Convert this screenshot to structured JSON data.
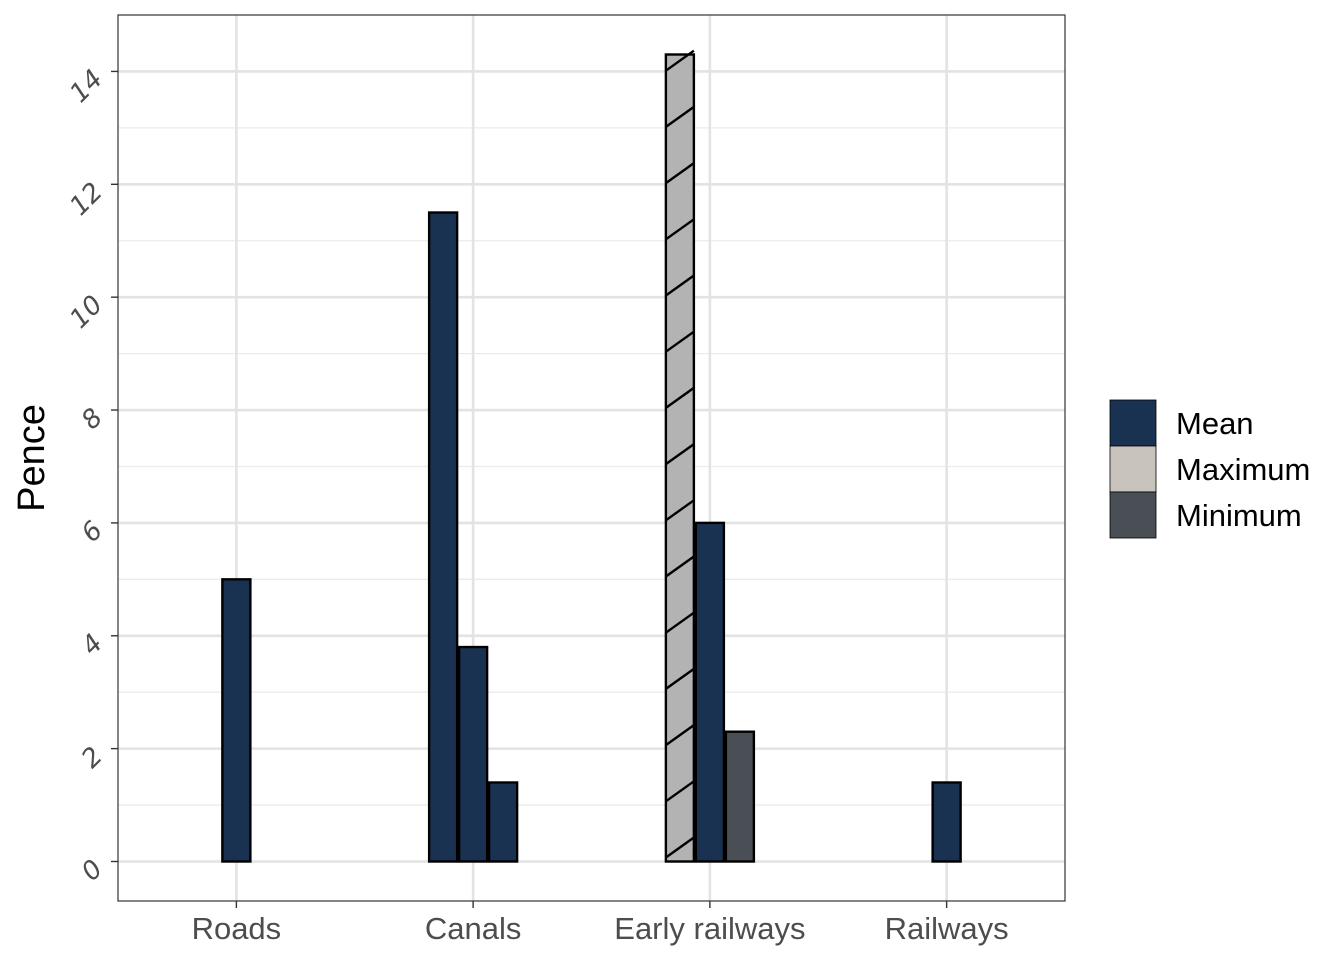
{
  "chart_data": {
    "type": "bar",
    "title": "",
    "xlabel": "",
    "ylabel": "Pence",
    "ylim": [
      -0.7,
      15.0
    ],
    "yticks": [
      0,
      2,
      4,
      6,
      8,
      10,
      12,
      14
    ],
    "grid": true,
    "legend_position": "right",
    "categories": [
      "Roads",
      "Canals",
      "Early railways",
      "Railways"
    ],
    "bars": [
      {
        "category": "Roads",
        "fill": "Mean",
        "value": 5.0,
        "hatched": false
      },
      {
        "category": "Canals",
        "fill": "Mean",
        "value": 11.5,
        "hatched": false
      },
      {
        "category": "Canals",
        "fill": "Mean",
        "value": 3.8,
        "hatched": false
      },
      {
        "category": "Canals",
        "fill": "Mean",
        "value": 1.4,
        "hatched": false
      },
      {
        "category": "Early railways",
        "fill": "Maximum",
        "value": 14.3,
        "hatched": true
      },
      {
        "category": "Early railways",
        "fill": "Mean",
        "value": 6.0,
        "hatched": false
      },
      {
        "category": "Early railways",
        "fill": "Minimum",
        "value": 2.3,
        "hatched": false
      },
      {
        "category": "Railways",
        "fill": "Mean",
        "value": 1.4,
        "hatched": false
      }
    ],
    "legend": [
      {
        "name": "Mean",
        "color": "#1a3252"
      },
      {
        "name": "Maximum",
        "color": "#c9c3be"
      },
      {
        "name": "Minimum",
        "color": "#4a4f55"
      }
    ],
    "hatched_bar_color": "#b3b3b3"
  }
}
